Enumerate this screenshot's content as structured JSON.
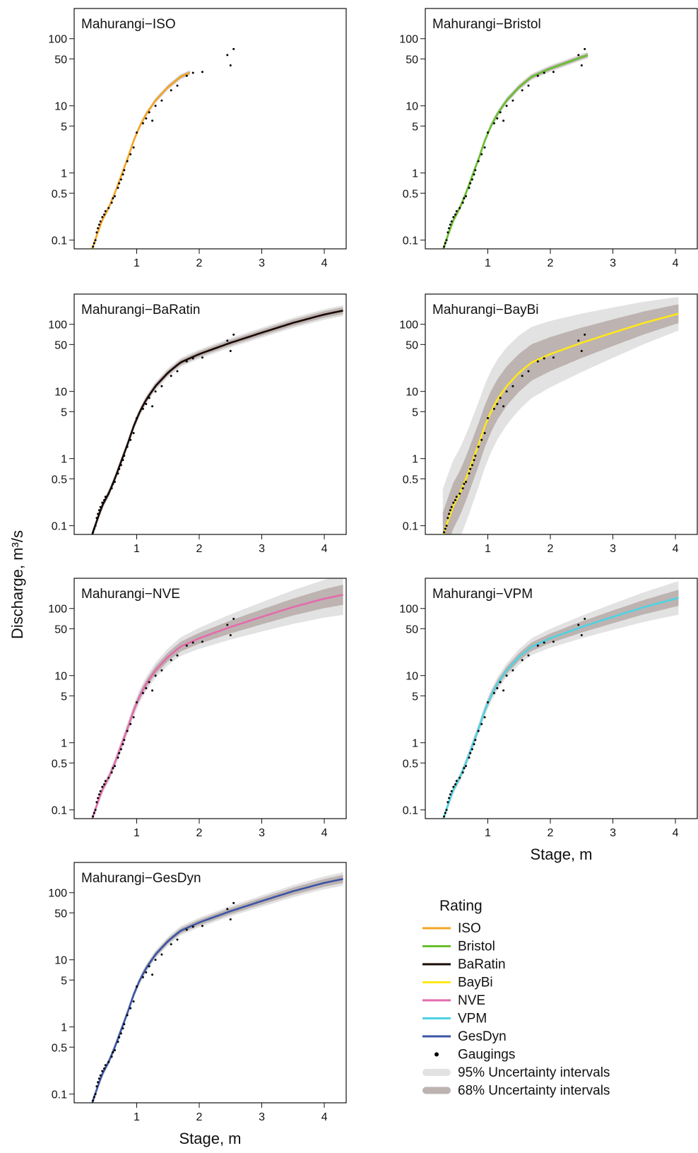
{
  "figure": {
    "ylabel": "Discharge, m³/s",
    "xlabel": "Stage, m"
  },
  "axes": {
    "xticks": [
      1,
      2,
      3,
      4
    ],
    "yticks": [
      100,
      50,
      10,
      5,
      1,
      0.5,
      0.1
    ],
    "ytick_labels": [
      "100",
      "50",
      "10",
      "5",
      "1",
      "0.5",
      "0.1"
    ],
    "xlim": [
      0.0,
      4.35
    ],
    "ylim_log10": [
      -1.13,
      2.45
    ],
    "scale_y": "log"
  },
  "legend": {
    "title": "Rating",
    "items": [
      {
        "label": "ISO",
        "kind": "line",
        "color": "#f5a623"
      },
      {
        "label": "Bristol",
        "kind": "line",
        "color": "#6abf2e"
      },
      {
        "label": "BaRatin",
        "kind": "line",
        "color": "#1a0a05"
      },
      {
        "label": "BayBi",
        "kind": "line",
        "color": "#ffe81a"
      },
      {
        "label": "NVE",
        "kind": "line",
        "color": "#e36bad"
      },
      {
        "label": "VPM",
        "kind": "line",
        "color": "#4dd3e3"
      },
      {
        "label": "GesDyn",
        "kind": "line",
        "color": "#3b55a6"
      },
      {
        "label": "Gaugings",
        "kind": "point",
        "color": "#000000"
      },
      {
        "label": "95% Uncertainty intervals",
        "kind": "band",
        "color": "#e2e2e2"
      },
      {
        "label": "68% Uncertainty intervals",
        "kind": "band",
        "color": "#bdb3b1"
      }
    ]
  },
  "chart_data": [
    {
      "type": "line",
      "title": "Mahurangi−ISO",
      "series_name": "ISO",
      "color": "#f5a623",
      "stage_max": 1.85,
      "band95": [
        0.04,
        0.04
      ],
      "band68": [
        0.025,
        0.025
      ],
      "shows_xlabel": false,
      "shows_ylabel": false
    },
    {
      "type": "line",
      "title": "Mahurangi−Bristol",
      "series_name": "Bristol",
      "color": "#6abf2e",
      "stage_max": 2.6,
      "band95": [
        0.05,
        0.05
      ],
      "band68": [
        0.03,
        0.03
      ],
      "shows_xlabel": false,
      "shows_ylabel": false
    },
    {
      "type": "line",
      "title": "Mahurangi−BaRatin",
      "series_name": "BaRatin",
      "color": "#1a0a05",
      "stage_max": 4.3,
      "band95": [
        0.06,
        0.08
      ],
      "band68": [
        0.035,
        0.05
      ],
      "shows_xlabel": false,
      "shows_ylabel": false
    },
    {
      "type": "line",
      "title": "Mahurangi−BayBi",
      "series_name": "BayBi",
      "color": "#ffe81a",
      "stage_max": 4.05,
      "band95": [
        0.7,
        0.25
      ],
      "band68": [
        0.35,
        0.14
      ],
      "shows_xlabel": false,
      "shows_ylabel": false
    },
    {
      "type": "line",
      "title": "Mahurangi−NVE",
      "series_name": "NVE",
      "color": "#e36bad",
      "stage_max": 4.3,
      "band95": [
        0.05,
        0.3
      ],
      "band68": [
        0.03,
        0.15
      ],
      "shows_xlabel": false,
      "shows_ylabel": true
    },
    {
      "type": "line",
      "title": "Mahurangi−VPM",
      "series_name": "VPM",
      "color": "#4dd3e3",
      "stage_max": 4.05,
      "band95": [
        0.05,
        0.25
      ],
      "band68": [
        0.03,
        0.12
      ],
      "shows_xlabel": true,
      "shows_ylabel": false
    },
    {
      "type": "line",
      "title": "Mahurangi−GesDyn",
      "series_name": "GesDyn",
      "color": "#3b55a6",
      "stage_max": 4.3,
      "band95": [
        0.05,
        0.1
      ],
      "band68": [
        0.03,
        0.06
      ],
      "shows_xlabel": true,
      "shows_ylabel": false
    }
  ],
  "curve": {
    "stage": [
      0.28,
      0.35,
      0.45,
      0.55,
      0.65,
      0.75,
      0.85,
      0.95,
      1.05,
      1.15,
      1.3,
      1.5,
      1.7,
      2.0,
      2.5,
      3.0,
      3.5,
      4.0,
      4.3
    ],
    "discharge": [
      0.07,
      0.11,
      0.2,
      0.3,
      0.5,
      0.9,
      1.6,
      3.0,
      5.0,
      7.5,
      12,
      19,
      27,
      36,
      53,
      75,
      105,
      140,
      160
    ]
  },
  "gaugings": {
    "stage": [
      0.3,
      0.32,
      0.34,
      0.36,
      0.38,
      0.4,
      0.42,
      0.45,
      0.48,
      0.5,
      0.55,
      0.6,
      0.62,
      0.65,
      0.7,
      0.72,
      0.75,
      0.78,
      0.8,
      0.85,
      0.9,
      0.95,
      1.0,
      1.1,
      1.15,
      1.2,
      1.25,
      1.3,
      1.4,
      1.55,
      1.65,
      1.8,
      1.9,
      2.05,
      2.45,
      2.5,
      2.55
    ],
    "discharge": [
      0.08,
      0.09,
      0.1,
      0.13,
      0.15,
      0.17,
      0.19,
      0.22,
      0.24,
      0.27,
      0.3,
      0.36,
      0.42,
      0.45,
      0.6,
      0.7,
      0.8,
      0.95,
      1.1,
      1.5,
      1.9,
      2.4,
      4.0,
      5.5,
      6.5,
      8.0,
      6.0,
      10.0,
      12.0,
      17.0,
      20.0,
      28.0,
      31.0,
      32.0,
      57.0,
      40.0,
      70.0
    ]
  }
}
